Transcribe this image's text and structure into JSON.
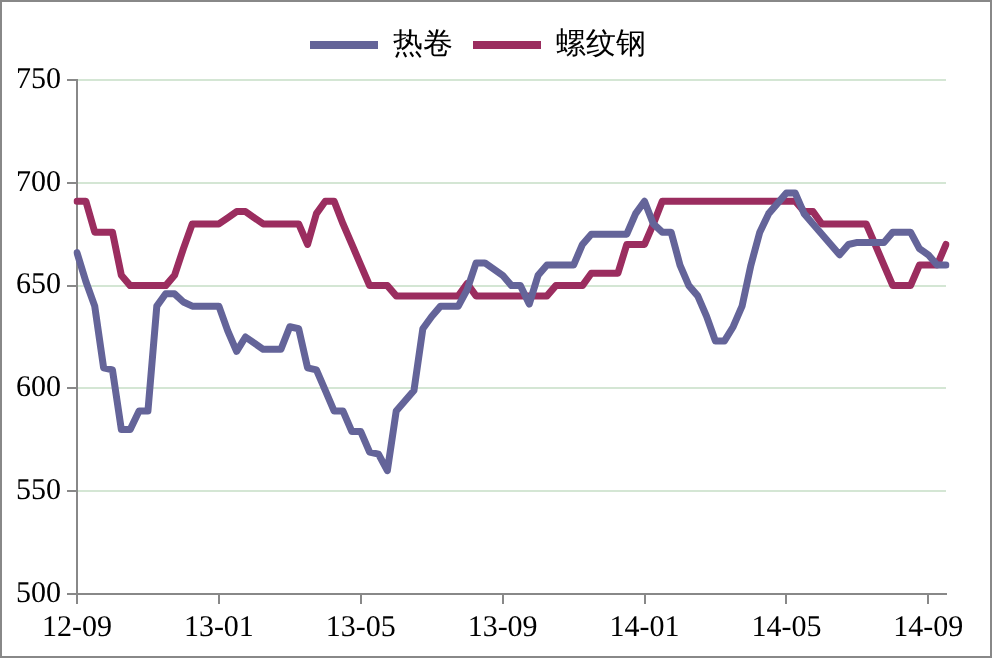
{
  "chart_data": {
    "type": "line",
    "categories": [
      "12-09",
      null,
      null,
      null,
      null,
      null,
      null,
      null,
      null,
      null,
      null,
      null,
      null,
      null,
      null,
      null,
      "13-01",
      null,
      null,
      null,
      null,
      null,
      null,
      null,
      null,
      null,
      null,
      null,
      null,
      null,
      null,
      null,
      "13-05",
      null,
      null,
      null,
      null,
      null,
      null,
      null,
      null,
      null,
      null,
      null,
      null,
      null,
      null,
      null,
      "13-09",
      null,
      null,
      null,
      null,
      null,
      null,
      null,
      null,
      null,
      null,
      null,
      null,
      null,
      null,
      null,
      "14-01",
      null,
      null,
      null,
      null,
      null,
      null,
      null,
      null,
      null,
      null,
      null,
      null,
      null,
      null,
      null,
      "14-05",
      null,
      null,
      null,
      null,
      null,
      null,
      null,
      null,
      null,
      null,
      null,
      null,
      null,
      null,
      null,
      "14-09",
      null,
      null
    ],
    "series": [
      {
        "name": "热卷",
        "color": "#646499",
        "values": [
          666,
          652,
          640,
          610,
          609,
          580,
          580,
          589,
          589,
          640,
          646,
          646,
          642,
          640,
          640,
          640,
          640,
          628,
          618,
          625,
          622,
          619,
          619,
          619,
          630,
          629,
          610,
          609,
          599,
          589,
          589,
          579,
          579,
          569,
          568,
          560,
          589,
          594,
          599,
          629,
          635,
          640,
          640,
          640,
          648,
          661,
          661,
          658,
          655,
          650,
          650,
          641,
          655,
          660,
          660,
          660,
          660,
          670,
          675,
          675,
          675,
          675,
          675,
          685,
          691,
          680,
          676,
          676,
          660,
          650,
          645,
          635,
          623,
          623,
          630,
          640,
          660,
          676,
          685,
          690,
          695,
          695,
          685,
          680,
          675,
          670,
          665,
          670,
          671,
          671,
          671,
          671,
          676,
          676,
          676,
          668,
          665,
          660,
          660
        ]
      },
      {
        "name": "螺纹钢",
        "color": "#9b2d5f",
        "values": [
          691,
          691,
          676,
          676,
          676,
          655,
          650,
          650,
          650,
          650,
          650,
          655,
          668,
          680,
          680,
          680,
          680,
          683,
          686,
          686,
          683,
          680,
          680,
          680,
          680,
          680,
          670,
          685,
          691,
          691,
          680,
          670,
          660,
          650,
          650,
          650,
          645,
          645,
          645,
          645,
          645,
          645,
          645,
          645,
          651,
          645,
          645,
          645,
          645,
          645,
          645,
          645,
          645,
          645,
          650,
          650,
          650,
          650,
          656,
          656,
          656,
          656,
          670,
          670,
          670,
          680,
          691,
          691,
          691,
          691,
          691,
          691,
          691,
          691,
          691,
          691,
          691,
          691,
          691,
          691,
          691,
          691,
          686,
          686,
          680,
          680,
          680,
          680,
          680,
          680,
          670,
          660,
          650,
          650,
          650,
          660,
          660,
          660,
          670
        ]
      }
    ],
    "ylim": [
      500,
      750
    ],
    "yticks": [
      500,
      550,
      600,
      650,
      700,
      750
    ],
    "grid": "y",
    "legend": "top",
    "marker": "none",
    "line_style": "solid"
  }
}
